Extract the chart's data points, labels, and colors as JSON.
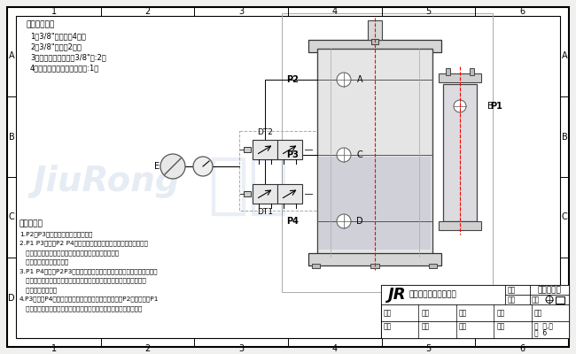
{
  "bg_color": "#f0f0ee",
  "col_labels": [
    "1",
    "2",
    "3",
    "4",
    "5",
    "6"
  ],
  "row_labels": [
    "A",
    "B",
    "C",
    "D"
  ],
  "company_name": "台湾玖容实业有限公司",
  "jr_logo": "JR",
  "doc_name": "气路连接图",
  "parts_title": "增压缸配件：",
  "parts_list": [
    "1：3/8\"快速接头4个；",
    "2：3/8\"消声器2个；",
    "3：二位五通电磁阀（3/8\"）:2个",
    "4：空气处理组合（三联件）:1个"
  ],
  "operation_title": "动作程序：",
  "operations": [
    "1.P2、P3通气，此时缸处于回开状态",
    "2.P1 P3通气，P2 P4排气，压缩空气作用在增加油箱内的液压油",
    "   表面，液压油推动预压腔活塞杆位移，并使预压控首杆",
    "   辅随的模具低速到工作；",
    "3.P1 P4通气，P2P3排气，压缩空气作用在增压活塞作位移去排压预压",
    "   腔的液压油，使液压油耀起，从而使预压活塞杆辅随的模具保持高压力",
    "   去排压成型工作。",
    "4.P3进气，P4排气，增压活塞回升，增压活塞到位后，P2气口进气，P1",
    "   排气预压活塞回位，液压油回到储油箱内，此时一个动作循环完成！"
  ]
}
